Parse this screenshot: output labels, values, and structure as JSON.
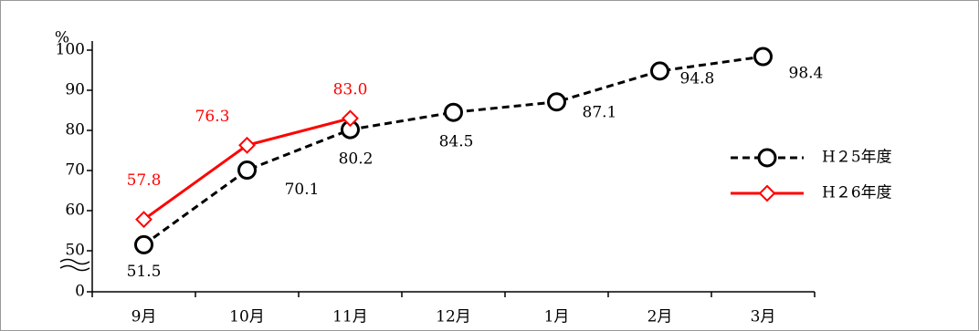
{
  "chart_data": {
    "type": "line",
    "y_unit": "%",
    "categories": [
      "9月",
      "10月",
      "11月",
      "12月",
      "1月",
      "2月",
      "3月"
    ],
    "series": [
      {
        "name": "H２5年度",
        "color": "#000000",
        "dash": true,
        "marker": "circle",
        "values": [
          51.5,
          70.1,
          80.2,
          84.5,
          87.1,
          94.8,
          98.4
        ]
      },
      {
        "name": "H２6年度",
        "color": "#ff0000",
        "dash": false,
        "marker": "diamond",
        "values": [
          57.8,
          76.3,
          83.0,
          null,
          null,
          null,
          null
        ],
        "value_labels": [
          "57.8",
          "76.3",
          "83.0",
          null,
          null,
          null,
          null
        ]
      }
    ],
    "ylim": [
      0,
      100
    ],
    "axis_break": [
      0,
      50
    ],
    "yticks": [
      0,
      50,
      60,
      70,
      80,
      90,
      100
    ]
  }
}
